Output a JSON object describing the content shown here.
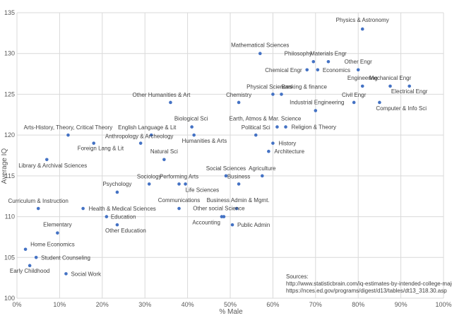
{
  "chart_data": {
    "type": "scatter",
    "xlabel": "% Male",
    "ylabel": "Average IQ",
    "xlim": [
      0,
      100
    ],
    "ylim": [
      100,
      135
    ],
    "x_ticks": [
      "0%",
      "10%",
      "20%",
      "30%",
      "40%",
      "50%",
      "60%",
      "70%",
      "80%",
      "90%",
      "100%"
    ],
    "y_ticks": [
      "100",
      "105",
      "110",
      "115",
      "120",
      "125",
      "130",
      "135"
    ],
    "grid": true,
    "points": [
      {
        "label": "Physics & Astronomy",
        "x": 81,
        "y": 133
      },
      {
        "label": "Mathematical Sciences",
        "x": 57,
        "y": 130
      },
      {
        "label": "Philosophy",
        "x": 69.5,
        "y": 129
      },
      {
        "label": "Materials Engr",
        "x": 73,
        "y": 129
      },
      {
        "label": "Chemical Engr",
        "x": 68,
        "y": 128
      },
      {
        "label": "Economics",
        "x": 70.5,
        "y": 128
      },
      {
        "label": "Other Engr",
        "x": 80,
        "y": 128
      },
      {
        "label": "Engineering",
        "x": 81,
        "y": 126
      },
      {
        "label": "Mechanical Engr",
        "x": 87.5,
        "y": 126
      },
      {
        "label": "Electrical Engr",
        "x": 92,
        "y": 126
      },
      {
        "label": "Physical Sciences",
        "x": 60,
        "y": 125
      },
      {
        "label": "Banking & finance",
        "x": 62,
        "y": 125
      },
      {
        "label": "Chemistry",
        "x": 52,
        "y": 124
      },
      {
        "label": "Other Humanities & Art",
        "x": 36,
        "y": 124
      },
      {
        "label": "Civil Engr",
        "x": 79,
        "y": 124
      },
      {
        "label": "Computer & Info Sci",
        "x": 85,
        "y": 124
      },
      {
        "label": "Industrial Engineering",
        "x": 70,
        "y": 123
      },
      {
        "label": "Earth, Atmos & Mar. Science",
        "x": 61,
        "y": 121
      },
      {
        "label": "Religion & Theory",
        "x": 63,
        "y": 121
      },
      {
        "label": "Political Sci",
        "x": 56,
        "y": 120
      },
      {
        "label": "Biological Sci",
        "x": 41,
        "y": 121
      },
      {
        "label": "Humanities & Arts",
        "x": 41.5,
        "y": 120
      },
      {
        "label": "English Language & Lit",
        "x": 31.5,
        "y": 120
      },
      {
        "label": "Arts-History, Theory, Critical Theory",
        "x": 12,
        "y": 120
      },
      {
        "label": "Anthropology & Archeology",
        "x": 29,
        "y": 119
      },
      {
        "label": "Foreign Lang & Lit",
        "x": 18,
        "y": 119
      },
      {
        "label": "History",
        "x": 60,
        "y": 119
      },
      {
        "label": "Architecture",
        "x": 59,
        "y": 118
      },
      {
        "label": "Natural Sci",
        "x": 34.5,
        "y": 117
      },
      {
        "label": "Library & Archival Sciences",
        "x": 7,
        "y": 117
      },
      {
        "label": "Social Sciences",
        "x": 49,
        "y": 115
      },
      {
        "label": "Agriculture",
        "x": 57.5,
        "y": 115
      },
      {
        "label": "Business",
        "x": 52,
        "y": 114
      },
      {
        "label": "Sociology",
        "x": 31,
        "y": 114
      },
      {
        "label": "Performing Arts",
        "x": 38,
        "y": 114
      },
      {
        "label": "Life Sciences",
        "x": 39.5,
        "y": 114
      },
      {
        "label": "Psychology",
        "x": 23.5,
        "y": 113
      },
      {
        "label": "Curriculum & Instruction",
        "x": 5,
        "y": 111
      },
      {
        "label": "Health & Medical Sciences",
        "x": 15.5,
        "y": 111
      },
      {
        "label": "Communications",
        "x": 38,
        "y": 111
      },
      {
        "label": "Business Admin & Mgmt.",
        "x": 51.5,
        "y": 111
      },
      {
        "label": "Education",
        "x": 21,
        "y": 110
      },
      {
        "label": "Other social Science",
        "x": 48.5,
        "y": 110
      },
      {
        "label": "Accounting",
        "x": 48,
        "y": 110
      },
      {
        "label": "Public Admin",
        "x": 50.5,
        "y": 109
      },
      {
        "label": "Other Education",
        "x": 23.5,
        "y": 109
      },
      {
        "label": "Elementary",
        "x": 9.5,
        "y": 108
      },
      {
        "label": "Home Economics",
        "x": 2,
        "y": 106
      },
      {
        "label": "Student Counseling",
        "x": 4.5,
        "y": 105
      },
      {
        "label": "Early Childhood",
        "x": 3,
        "y": 104
      },
      {
        "label": "Social Work",
        "x": 11.5,
        "y": 103
      }
    ],
    "annotation": [
      "Sources:",
      "http://www.statisticbrain.com/iq-estimates-by-intended-college-major",
      "https://nces.ed.gov/programs/digest/d13/tables/dt13_318.30.asp"
    ]
  }
}
